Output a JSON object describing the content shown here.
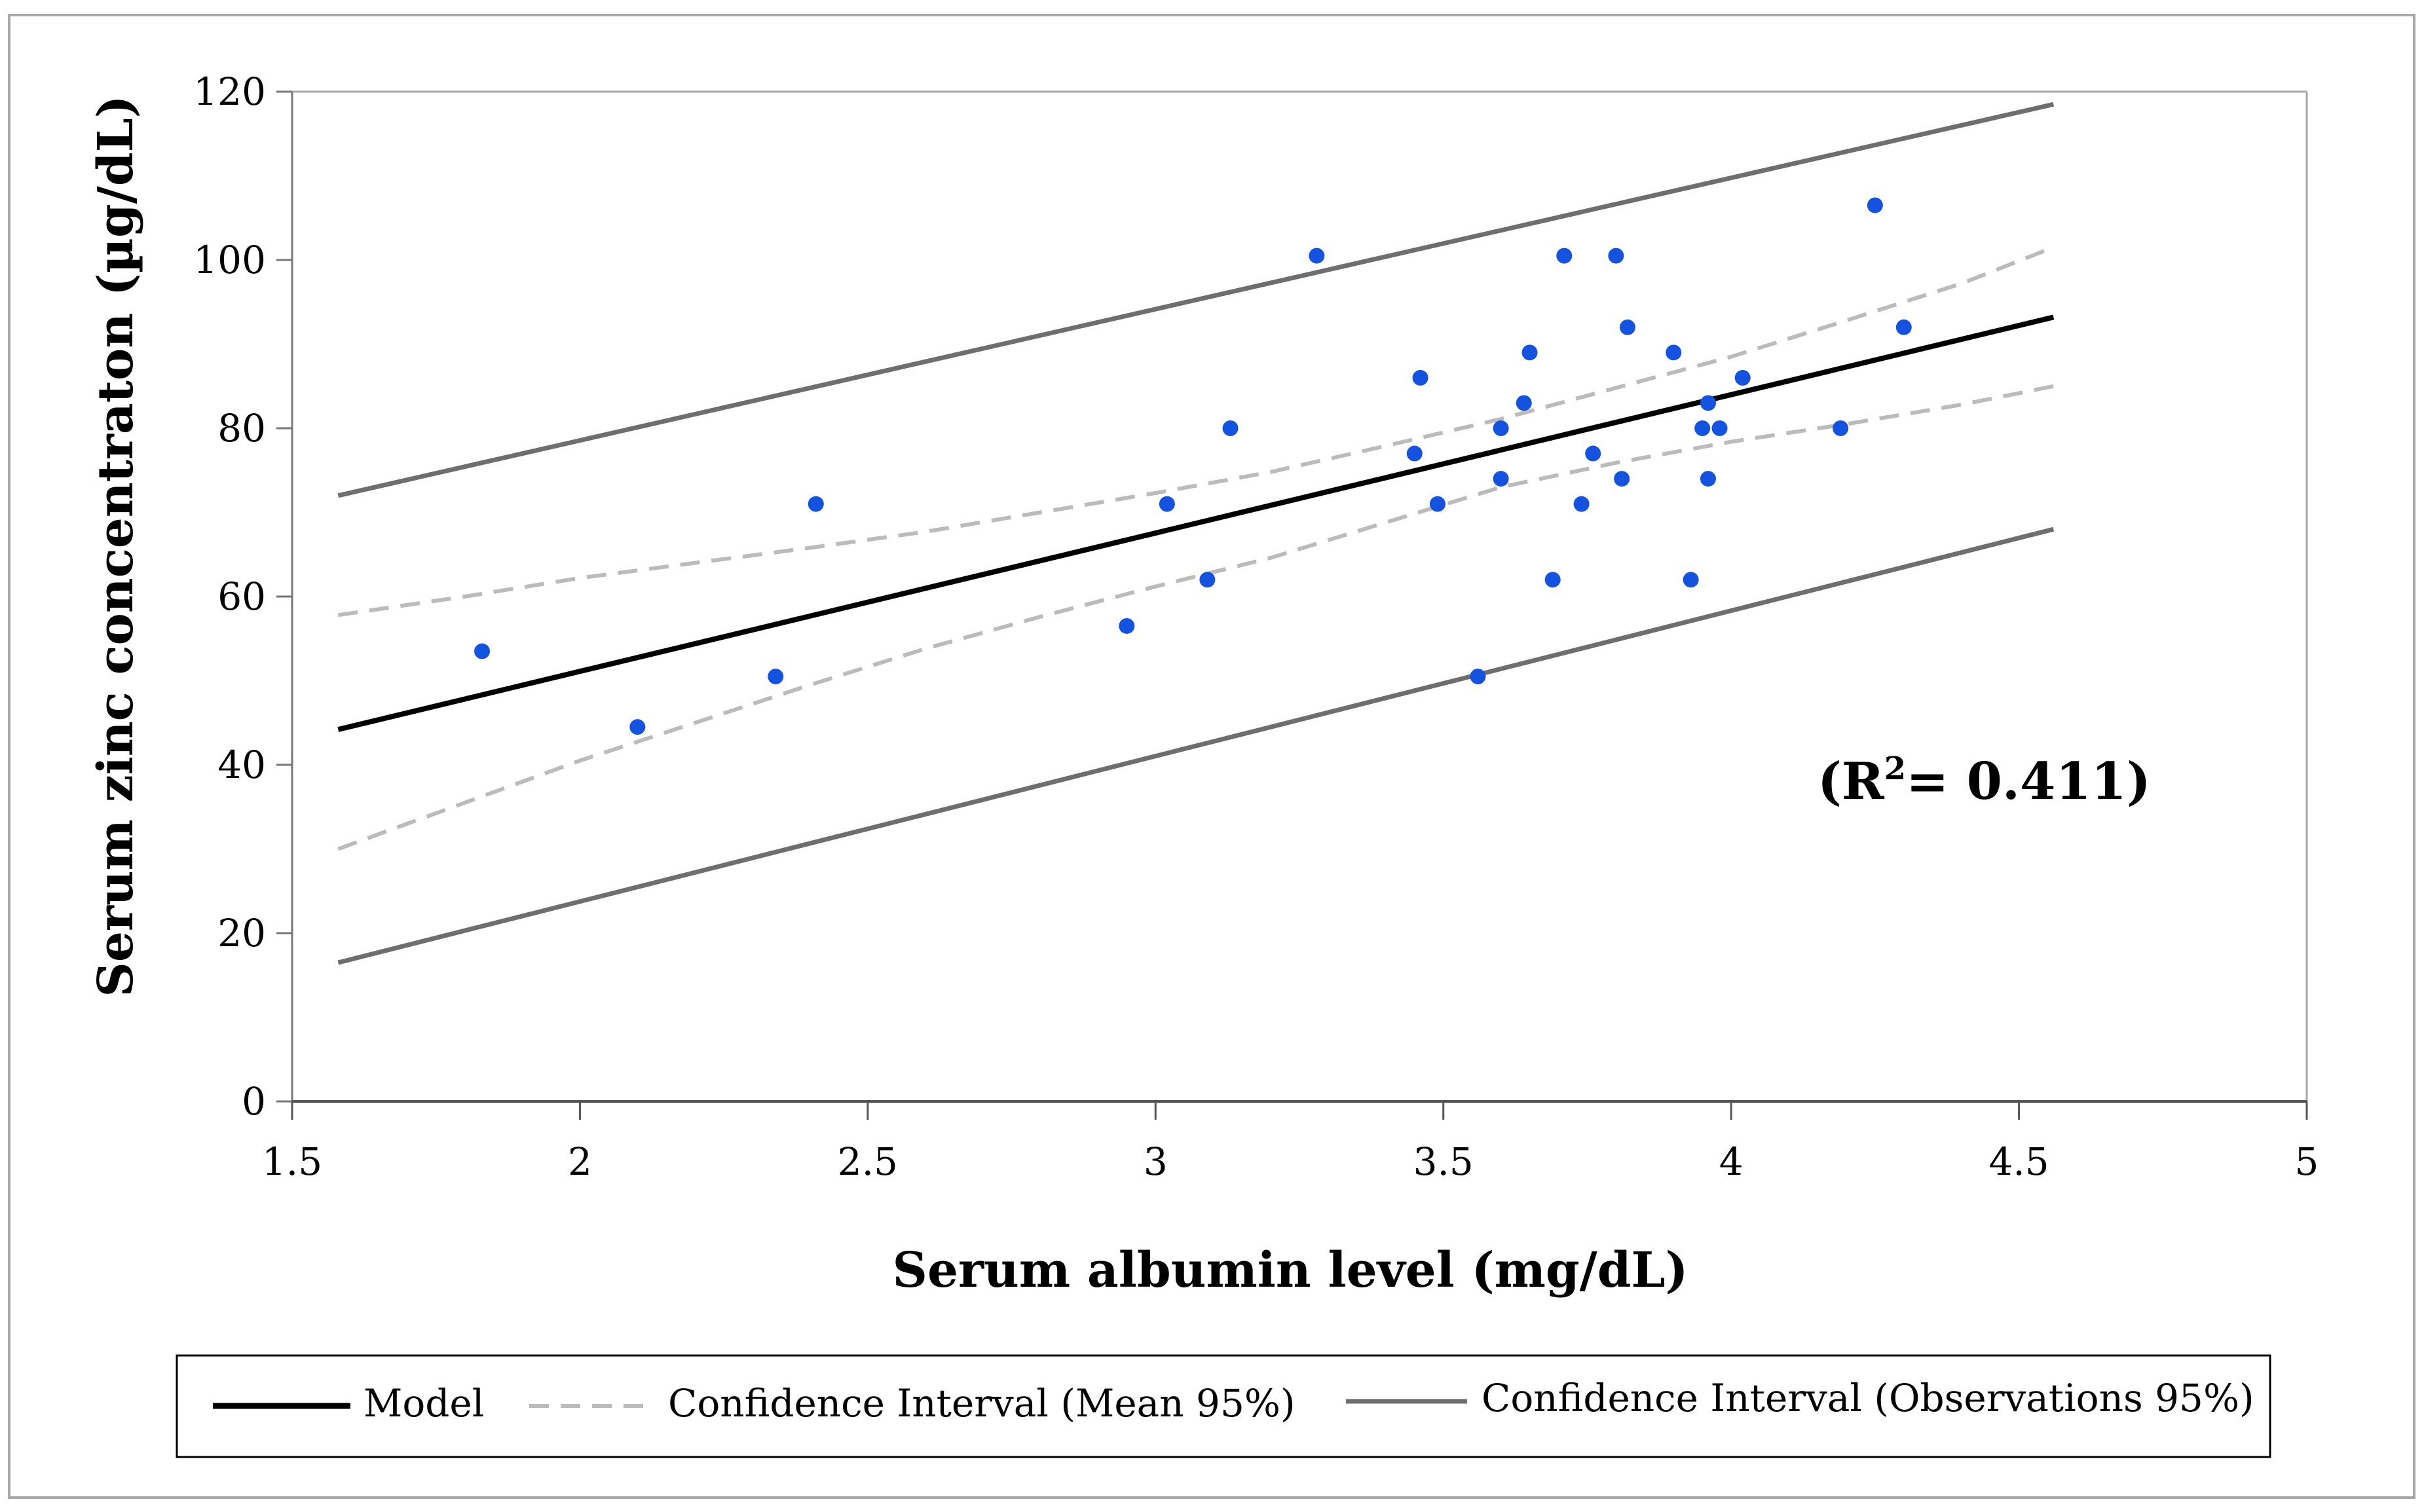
{
  "chart_data": {
    "type": "scatter",
    "xlabel": "Serum albumin level (mg/dL)",
    "ylabel": "Serum zinc concentraton (µg/dL)",
    "xlim": [
      1.5,
      5
    ],
    "ylim": [
      0,
      120
    ],
    "x_ticks": [
      "1.5",
      "2",
      "2.5",
      "3",
      "3.5",
      "4",
      "4.5",
      "5"
    ],
    "y_ticks": [
      "0",
      "20",
      "40",
      "60",
      "80",
      "100",
      "120"
    ],
    "grid": false,
    "annotation": {
      "prefix": "(R",
      "superscript": "2",
      "suffix": "= 0.411)"
    },
    "points": [
      {
        "x": 1.83,
        "y": 53.5
      },
      {
        "x": 2.1,
        "y": 44.5
      },
      {
        "x": 2.34,
        "y": 50.5
      },
      {
        "x": 2.41,
        "y": 71
      },
      {
        "x": 2.95,
        "y": 56.5
      },
      {
        "x": 3.02,
        "y": 71
      },
      {
        "x": 3.09,
        "y": 62
      },
      {
        "x": 3.13,
        "y": 80
      },
      {
        "x": 3.28,
        "y": 100.5
      },
      {
        "x": 3.45,
        "y": 77
      },
      {
        "x": 3.46,
        "y": 86
      },
      {
        "x": 3.49,
        "y": 71
      },
      {
        "x": 3.56,
        "y": 50.5
      },
      {
        "x": 3.6,
        "y": 80
      },
      {
        "x": 3.6,
        "y": 74
      },
      {
        "x": 3.64,
        "y": 83
      },
      {
        "x": 3.65,
        "y": 89
      },
      {
        "x": 3.69,
        "y": 62
      },
      {
        "x": 3.71,
        "y": 100.5
      },
      {
        "x": 3.74,
        "y": 71
      },
      {
        "x": 3.76,
        "y": 77
      },
      {
        "x": 3.8,
        "y": 100.5
      },
      {
        "x": 3.81,
        "y": 74
      },
      {
        "x": 3.82,
        "y": 92
      },
      {
        "x": 3.9,
        "y": 89
      },
      {
        "x": 3.93,
        "y": 62
      },
      {
        "x": 3.95,
        "y": 80
      },
      {
        "x": 3.96,
        "y": 83
      },
      {
        "x": 3.96,
        "y": 74
      },
      {
        "x": 3.98,
        "y": 80
      },
      {
        "x": 4.02,
        "y": 86
      },
      {
        "x": 4.19,
        "y": 80
      },
      {
        "x": 4.25,
        "y": 106.5
      },
      {
        "x": 4.3,
        "y": 92
      }
    ],
    "series": [
      {
        "name": "Model",
        "style": "solid",
        "color": "#000000",
        "x": [
          1.58,
          4.56
        ],
        "y": [
          44.2,
          93.2
        ]
      },
      {
        "name": "Confidence Interval (Mean 95%)",
        "style": "dashed",
        "color": "#bbbbbb",
        "x": [
          1.58,
          1.8,
          2.0,
          2.2,
          2.4,
          2.6,
          2.8,
          3.0,
          3.2,
          3.4,
          3.6,
          3.8,
          4.0,
          4.2,
          4.4,
          4.56
        ],
        "y": [
          57.8,
          60.0,
          62.2,
          64.0,
          65.8,
          67.7,
          70.0,
          72.3,
          74.8,
          77.9,
          81.1,
          84.8,
          88.5,
          92.8,
          97.2,
          101.5
        ]
      },
      {
        "name": "Confidence Interval (Mean 95%) lower",
        "style": "dashed",
        "color": "#bbbbbb",
        "x": [
          1.58,
          1.8,
          2.0,
          2.2,
          2.4,
          2.6,
          2.8,
          3.0,
          3.2,
          3.4,
          3.6,
          3.8,
          4.0,
          4.2,
          4.4,
          4.56
        ],
        "y": [
          30.0,
          35.5,
          40.5,
          45.0,
          49.5,
          53.8,
          57.6,
          61.2,
          64.6,
          68.8,
          73.0,
          75.9,
          78.4,
          80.5,
          82.8,
          85.0
        ]
      },
      {
        "name": "Confidence Interval (Observations 95%)",
        "style": "solid",
        "color": "#6e6e6e",
        "x": [
          1.58,
          4.56
        ],
        "y": [
          72.0,
          118.5
        ]
      },
      {
        "name": "Confidence Interval (Observations 95%) lower",
        "style": "solid",
        "color": "#6e6e6e",
        "x": [
          1.58,
          4.56
        ],
        "y": [
          16.5,
          68.0
        ]
      }
    ],
    "legend": {
      "placement": "bottom",
      "entries": [
        {
          "label": "Model",
          "style": "solid",
          "color": "#000000"
        },
        {
          "label": "Confidence Interval (Mean 95%)",
          "style": "dashed",
          "color": "#bbbbbb"
        },
        {
          "label": "Confidence Interval (Observations 95%)",
          "style": "solid",
          "color": "#6e6e6e"
        }
      ]
    },
    "point_color": "#1452e0",
    "frame_color": "#a8a8a8"
  }
}
